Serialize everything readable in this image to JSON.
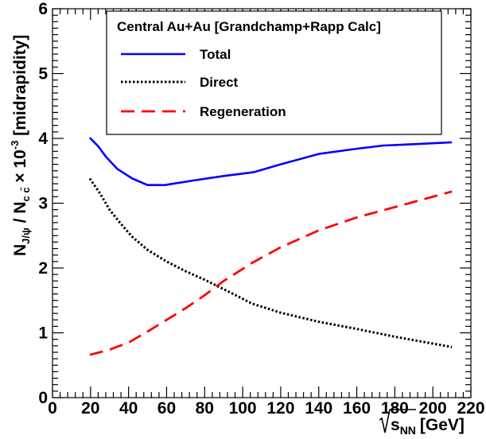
{
  "chart_data": {
    "type": "line",
    "title": "",
    "xlabel": "√s_NN [GeV]",
    "xlabel_parts": {
      "root": "s",
      "sub": "NN",
      "unit": "[GeV]"
    },
    "ylabel_parts": {
      "n1": "N",
      "n1_sub": "J/ψ",
      "slash": " / N",
      "n2_sub": "c c̄",
      "times": " × 10",
      "exp": "-3",
      "tail": " [midrapidity]"
    },
    "xlim": [
      0,
      220
    ],
    "ylim": [
      0,
      6
    ],
    "x_ticks": [
      0,
      20,
      40,
      60,
      80,
      100,
      120,
      140,
      160,
      180,
      200,
      220
    ],
    "y_ticks": [
      0,
      1,
      2,
      3,
      4,
      5,
      6
    ],
    "legend": {
      "title": "Central Au+Au [Grandchamp+Rapp Calc]",
      "placement": "top-right"
    },
    "series": [
      {
        "name": "Total",
        "color": "#0000ff",
        "style": "solid",
        "x": [
          19.6,
          24,
          28,
          34,
          42,
          50,
          59,
          74,
          90,
          106,
          120,
          140,
          160,
          174,
          190,
          210
        ],
        "y": [
          4.01,
          3.88,
          3.72,
          3.53,
          3.38,
          3.28,
          3.28,
          3.35,
          3.42,
          3.48,
          3.6,
          3.76,
          3.84,
          3.89,
          3.91,
          3.94
        ]
      },
      {
        "name": "Direct",
        "color": "#000000",
        "style": "dotted",
        "x": [
          19.6,
          25,
          30,
          36,
          42,
          50,
          60,
          70,
          80,
          95,
          105,
          120,
          140,
          160,
          180,
          210
        ],
        "y": [
          3.38,
          3.15,
          2.9,
          2.68,
          2.48,
          2.28,
          2.1,
          1.95,
          1.82,
          1.6,
          1.45,
          1.31,
          1.17,
          1.06,
          0.94,
          0.78
        ]
      },
      {
        "name": "Regeneration",
        "color": "#ff0000",
        "style": "dashed",
        "x": [
          19.6,
          30,
          40,
          50,
          60,
          70,
          80,
          90,
          105,
          120,
          140,
          160,
          180,
          210
        ],
        "y": [
          0.66,
          0.74,
          0.85,
          1.02,
          1.2,
          1.38,
          1.58,
          1.8,
          2.08,
          2.32,
          2.58,
          2.78,
          2.94,
          3.18
        ]
      }
    ]
  }
}
